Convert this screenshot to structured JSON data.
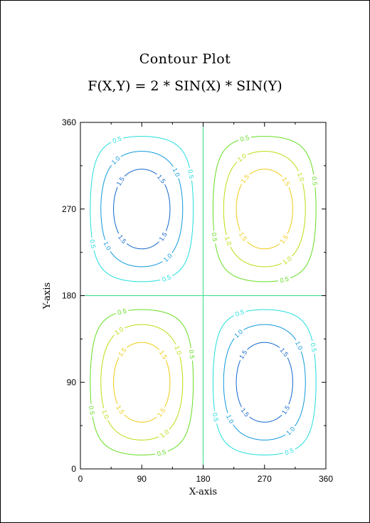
{
  "chart_data": {
    "type": "contour",
    "title": "Contour Plot",
    "subtitle": "F(X,Y) = 2 * SIN(X) * SIN(Y)",
    "xlabel": "X-axis",
    "ylabel": "Y-axis",
    "xlim": [
      0,
      360
    ],
    "ylim": [
      0,
      360
    ],
    "xticks": [
      0,
      90,
      180,
      270,
      360
    ],
    "yticks": [
      0,
      90,
      180,
      270,
      360
    ],
    "xtick_labels": [
      "0",
      "90",
      "180",
      "270",
      "360"
    ],
    "ytick_labels": [
      "0",
      "90",
      "180",
      "270",
      "360"
    ],
    "grid": false,
    "zero_lines": {
      "x": 180,
      "y": 180,
      "color": "#33dd88"
    },
    "levels": [
      {
        "value": 0.5,
        "label": "0.5",
        "color_positive": "#66dd22",
        "color_negative": "#22dddd"
      },
      {
        "value": 1.0,
        "label": "1.0",
        "color_positive": "#bbdd11",
        "color_negative": "#1199dd"
      },
      {
        "value": 1.5,
        "label": "1.5",
        "color_positive": "#eecc11",
        "color_negative": "#1166cc"
      }
    ],
    "quadrants": [
      {
        "name": "lower-left",
        "x_center": 90,
        "y_center": 90,
        "sign": "positive"
      },
      {
        "name": "upper-right",
        "x_center": 270,
        "y_center": 270,
        "sign": "positive"
      },
      {
        "name": "upper-left",
        "x_center": 90,
        "y_center": 270,
        "sign": "negative"
      },
      {
        "name": "lower-right",
        "x_center": 270,
        "y_center": 90,
        "sign": "negative"
      }
    ]
  }
}
